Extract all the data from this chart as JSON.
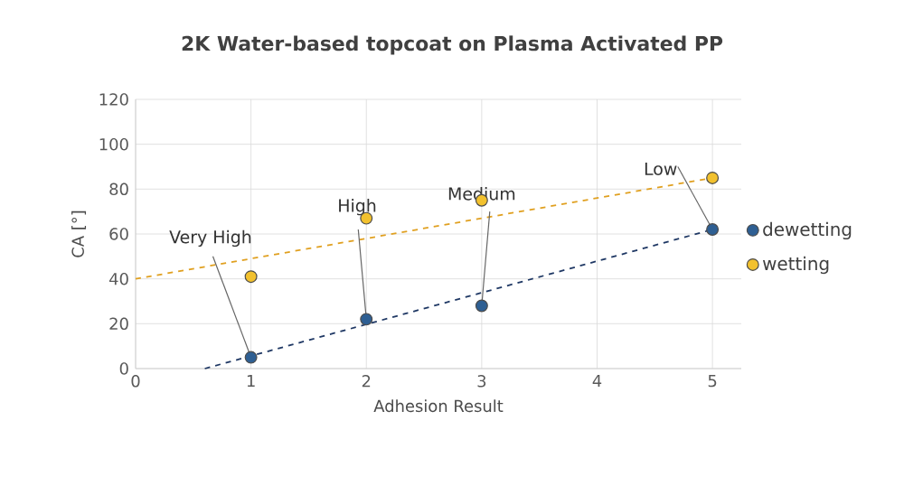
{
  "chart_data": {
    "type": "scatter",
    "title": "2K Water-based topcoat on Plasma Activated PP",
    "xlabel": "Adhesion Result",
    "ylabel": "CA [°]",
    "xlim": [
      0,
      5.25
    ],
    "ylim": [
      0,
      120
    ],
    "xticks": [
      0,
      1,
      2,
      3,
      4,
      5
    ],
    "yticks": [
      0,
      20,
      40,
      60,
      80,
      100,
      120
    ],
    "grid": true,
    "legend": "right",
    "series": [
      {
        "name": "dewetting",
        "color": "#2e5f93",
        "marker": "circle",
        "x": [
          1,
          2,
          3,
          5
        ],
        "values": [
          5,
          22,
          28,
          62
        ]
      },
      {
        "name": "wetting",
        "color": "#f2c12e",
        "marker": "circle",
        "x": [
          1,
          2,
          3,
          5
        ],
        "values": [
          41,
          67,
          75,
          85
        ]
      },
      {
        "type": "line",
        "color": "#1f3864",
        "line_style": "dashed",
        "marker": "none",
        "x": [
          0.6,
          5
        ],
        "values": [
          0,
          62
        ]
      },
      {
        "type": "line",
        "color": "#e0a020",
        "line_style": "dashed",
        "marker": "none",
        "x": [
          0,
          5
        ],
        "values": [
          40,
          85
        ]
      }
    ],
    "annotations": [
      {
        "text": "Very High",
        "x": 1,
        "y": 5
      },
      {
        "text": "High",
        "x": 2,
        "y": 22
      },
      {
        "text": "Medium",
        "x": 3,
        "y": 28
      },
      {
        "text": "Low",
        "x": 5,
        "y": 62
      }
    ]
  }
}
